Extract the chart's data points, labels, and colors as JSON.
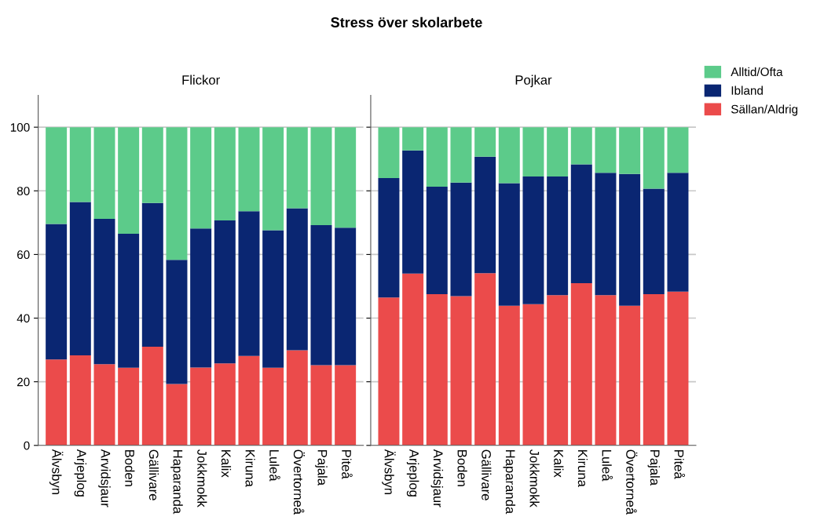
{
  "chart_data": [
    {
      "type": "bar",
      "title": "Flickor",
      "annotations": [
        "Stress över skolarbete"
      ],
      "stacked": true,
      "grid": "y",
      "tick_labels": "xy",
      "legend": "top right",
      "categories": [
        "Älvsbyn",
        "Arjeplog",
        "Arvidsjaur",
        "Boden",
        "Gällivare",
        "Haparanda",
        "Jokkmokk",
        "Kalix",
        "Kiruna",
        "Luleå",
        "Övertorneå",
        "Pajala",
        "Piteå"
      ],
      "ylim": [
        0,
        110
      ],
      "yticks": [
        0,
        20,
        40,
        60,
        80,
        100
      ],
      "series": [
        {
          "name": "Sällan/Aldrig",
          "color": "#eb4b4b",
          "values": [
            27.0,
            28.3,
            25.5,
            24.4,
            31.0,
            19.3,
            24.5,
            25.8,
            28.1,
            24.4,
            29.9,
            25.2,
            25.2
          ]
        },
        {
          "name": "Ibland",
          "color": "#0a2672",
          "values": [
            42.6,
            48.2,
            45.7,
            42.1,
            45.2,
            39.0,
            43.7,
            44.9,
            45.5,
            43.2,
            44.6,
            44.0,
            43.2
          ]
        },
        {
          "name": "Alltid/Ofta",
          "color": "#5ccb8a",
          "values": [
            30.4,
            23.5,
            28.8,
            33.5,
            23.8,
            41.7,
            31.8,
            29.3,
            26.4,
            32.4,
            25.5,
            30.8,
            31.6
          ]
        }
      ]
    },
    {
      "type": "bar",
      "title": "Pojkar",
      "stacked": true,
      "grid": "y",
      "tick_labels": "x",
      "categories": [
        "Älvsbyn",
        "Arjeplog",
        "Arvidsjaur",
        "Boden",
        "Gällivare",
        "Haparanda",
        "Jokkmokk",
        "Kalix",
        "Kiruna",
        "Luleå",
        "Övertorneå",
        "Pajala",
        "Piteå"
      ],
      "ylim": [
        0,
        110
      ],
      "yticks": [
        0,
        20,
        40,
        60,
        80,
        100
      ],
      "series": [
        {
          "color": "#eb4b4b",
          "values": [
            46.5,
            54.0,
            47.5,
            46.9,
            54.1,
            43.9,
            44.4,
            47.2,
            51.0,
            47.2,
            43.9,
            47.5,
            48.3
          ]
        },
        {
          "color": "#0a2672",
          "values": [
            37.5,
            38.7,
            33.8,
            35.7,
            36.6,
            38.5,
            40.1,
            37.3,
            37.3,
            38.5,
            41.4,
            33.2,
            37.4
          ]
        },
        {
          "color": "#5ccb8a",
          "values": [
            16.0,
            7.3,
            18.7,
            17.4,
            9.3,
            17.6,
            15.5,
            15.5,
            11.7,
            14.3,
            14.7,
            19.3,
            14.3
          ]
        }
      ]
    }
  ]
}
